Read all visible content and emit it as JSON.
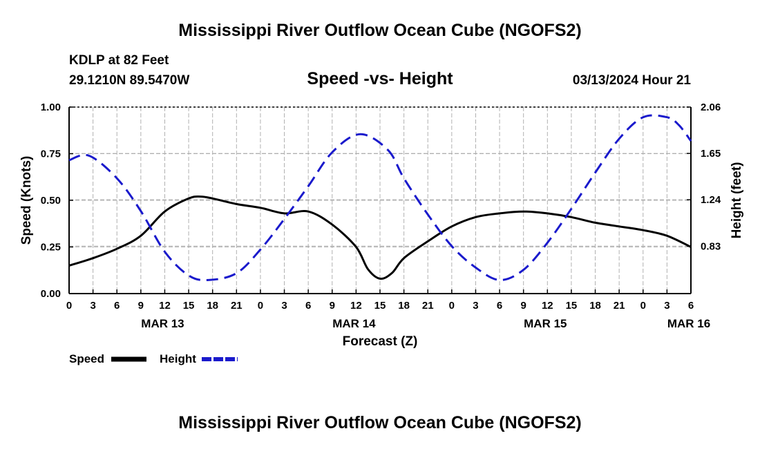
{
  "header": {
    "title": "Mississippi River Outflow Ocean Cube (NGOFS2)",
    "station": "KDLP at 82 Feet",
    "coords": "29.1210N  89.5470W",
    "chart_subtitle": "Speed -vs- Height",
    "timestamp": "03/13/2024 Hour 21"
  },
  "footer": {
    "title": "Mississippi River Outflow Ocean Cube (NGOFS2)"
  },
  "colors": {
    "speed": "#000000",
    "height": "#1a1acc",
    "grid": "#b0b0b0"
  },
  "chart_data": {
    "type": "line",
    "title": "Speed -vs- Height",
    "xlabel": "Forecast (Z)",
    "ylabel": "Speed (Knots)",
    "y2label": "Height (feet)",
    "xlim": [
      0,
      78
    ],
    "ylim": [
      0,
      1.0
    ],
    "y2lim": [
      0.41,
      2.06
    ],
    "x_ticks": [
      0,
      3,
      6,
      9,
      12,
      15,
      18,
      21,
      24,
      27,
      30,
      33,
      36,
      39,
      42,
      45,
      48,
      51,
      54,
      57,
      60,
      63,
      66,
      69,
      72,
      75,
      78
    ],
    "x_tick_labels": [
      "0",
      "3",
      "6",
      "9",
      "12",
      "15",
      "18",
      "21",
      "0",
      "3",
      "6",
      "9",
      "12",
      "15",
      "18",
      "21",
      "0",
      "3",
      "6",
      "9",
      "12",
      "15",
      "18",
      "21",
      "0",
      "3",
      "6"
    ],
    "y_ticks": [
      0,
      0.25,
      0.5,
      0.75,
      1.0
    ],
    "y_tick_labels": [
      "0.00",
      "0.25",
      "0.50",
      "0.75",
      "1.00"
    ],
    "y2_ticks": [
      0.83,
      1.24,
      1.65,
      2.06
    ],
    "y2_tick_labels": [
      "0.83",
      "1.24",
      "1.65",
      "2.06"
    ],
    "day_labels": [
      {
        "x": 12,
        "label": "MAR 13"
      },
      {
        "x": 36,
        "label": "MAR 14"
      },
      {
        "x": 60,
        "label": "MAR 15"
      },
      {
        "x": 78,
        "label": "MAR 16"
      }
    ],
    "series": [
      {
        "name": "Speed",
        "axis": "left",
        "style": "solid",
        "x": [
          0,
          3,
          6,
          9,
          12,
          15,
          16.5,
          18,
          21,
          24,
          27,
          30,
          33,
          36,
          37.5,
          39,
          40.5,
          42,
          45,
          48,
          51,
          54,
          57,
          60,
          63,
          66,
          69,
          72,
          75,
          78
        ],
        "values": [
          0.15,
          0.19,
          0.24,
          0.31,
          0.44,
          0.51,
          0.52,
          0.51,
          0.48,
          0.46,
          0.43,
          0.44,
          0.37,
          0.25,
          0.13,
          0.08,
          0.11,
          0.19,
          0.28,
          0.36,
          0.41,
          0.43,
          0.44,
          0.43,
          0.41,
          0.38,
          0.36,
          0.34,
          0.31,
          0.25
        ]
      },
      {
        "name": "Height",
        "axis": "right",
        "style": "dashed",
        "x": [
          0,
          2.5,
          6,
          9,
          12,
          15,
          17.5,
          21,
          24,
          27,
          30,
          33,
          36.5,
          40,
          42,
          45,
          48,
          51,
          54,
          57,
          60,
          63,
          66,
          69,
          72,
          75,
          76.5,
          78
        ],
        "values": [
          1.59,
          1.63,
          1.43,
          1.14,
          0.78,
          0.57,
          0.53,
          0.59,
          0.8,
          1.07,
          1.36,
          1.66,
          1.82,
          1.68,
          1.43,
          1.11,
          0.83,
          0.64,
          0.53,
          0.62,
          0.86,
          1.16,
          1.48,
          1.78,
          1.97,
          1.97,
          1.9,
          1.76
        ]
      }
    ],
    "legend": [
      {
        "name": "Speed",
        "style": "solid"
      },
      {
        "name": "Height",
        "style": "dashed"
      }
    ]
  }
}
